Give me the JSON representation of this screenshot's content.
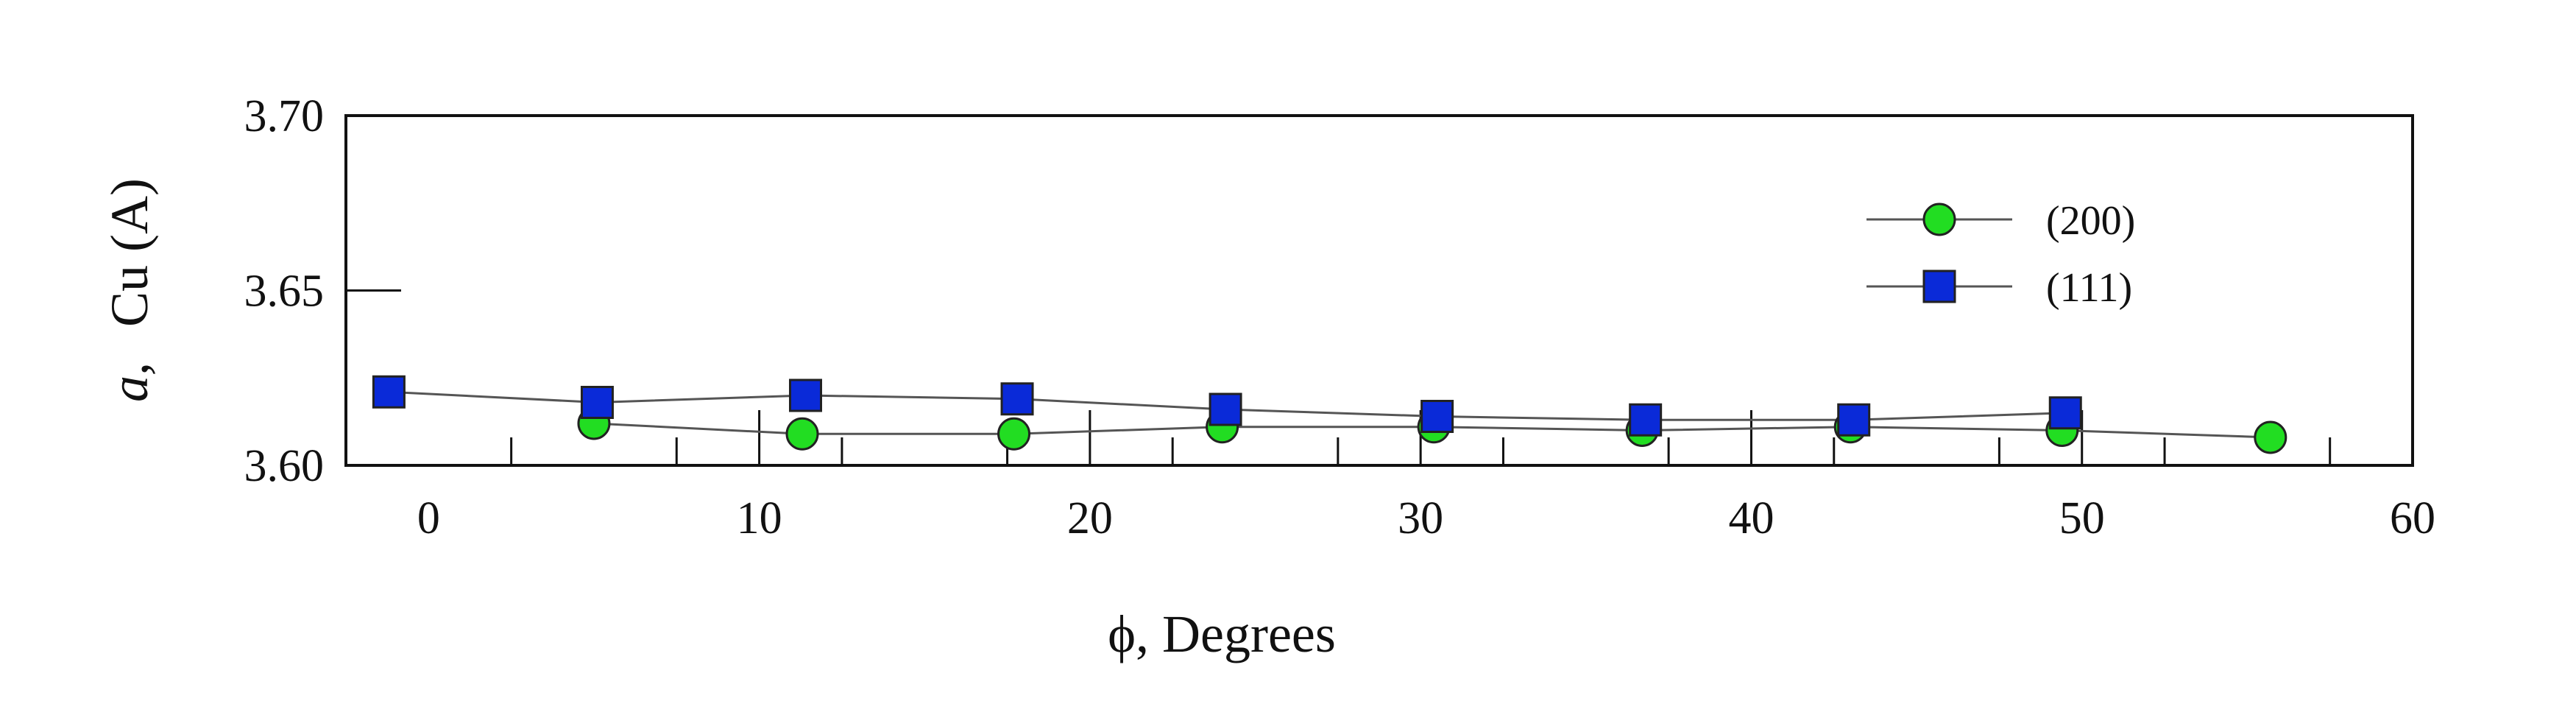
{
  "chart_data": {
    "type": "line",
    "xlabel": "ϕ, Degrees",
    "ylabel_italic": "a,",
    "ylabel_rest": "Cu (A)",
    "xlim": [
      -2.5,
      60
    ],
    "ylim": [
      3.6,
      3.7
    ],
    "xticks": [
      "0",
      "10",
      "20",
      "30",
      "40",
      "50",
      "60"
    ],
    "yticks": [
      "3.60",
      "3.65",
      "3.70"
    ],
    "grid": false,
    "legend_position": "top-right",
    "series": [
      {
        "name": "(200)",
        "marker": "circle",
        "color": "#22dd22",
        "x": [
          5.0,
          11.3,
          17.7,
          24.0,
          30.4,
          36.7,
          43.0,
          49.4,
          55.7
        ],
        "y": [
          3.612,
          3.609,
          3.609,
          3.611,
          3.611,
          3.61,
          3.611,
          3.61,
          3.608
        ]
      },
      {
        "name": "(111)",
        "marker": "square",
        "color": "#0a2ad8",
        "x": [
          -1.2,
          5.1,
          11.4,
          17.8,
          24.1,
          30.5,
          36.8,
          43.1,
          49.5
        ],
        "y": [
          3.621,
          3.618,
          3.62,
          3.619,
          3.616,
          3.614,
          3.613,
          3.613,
          3.615
        ]
      }
    ]
  }
}
